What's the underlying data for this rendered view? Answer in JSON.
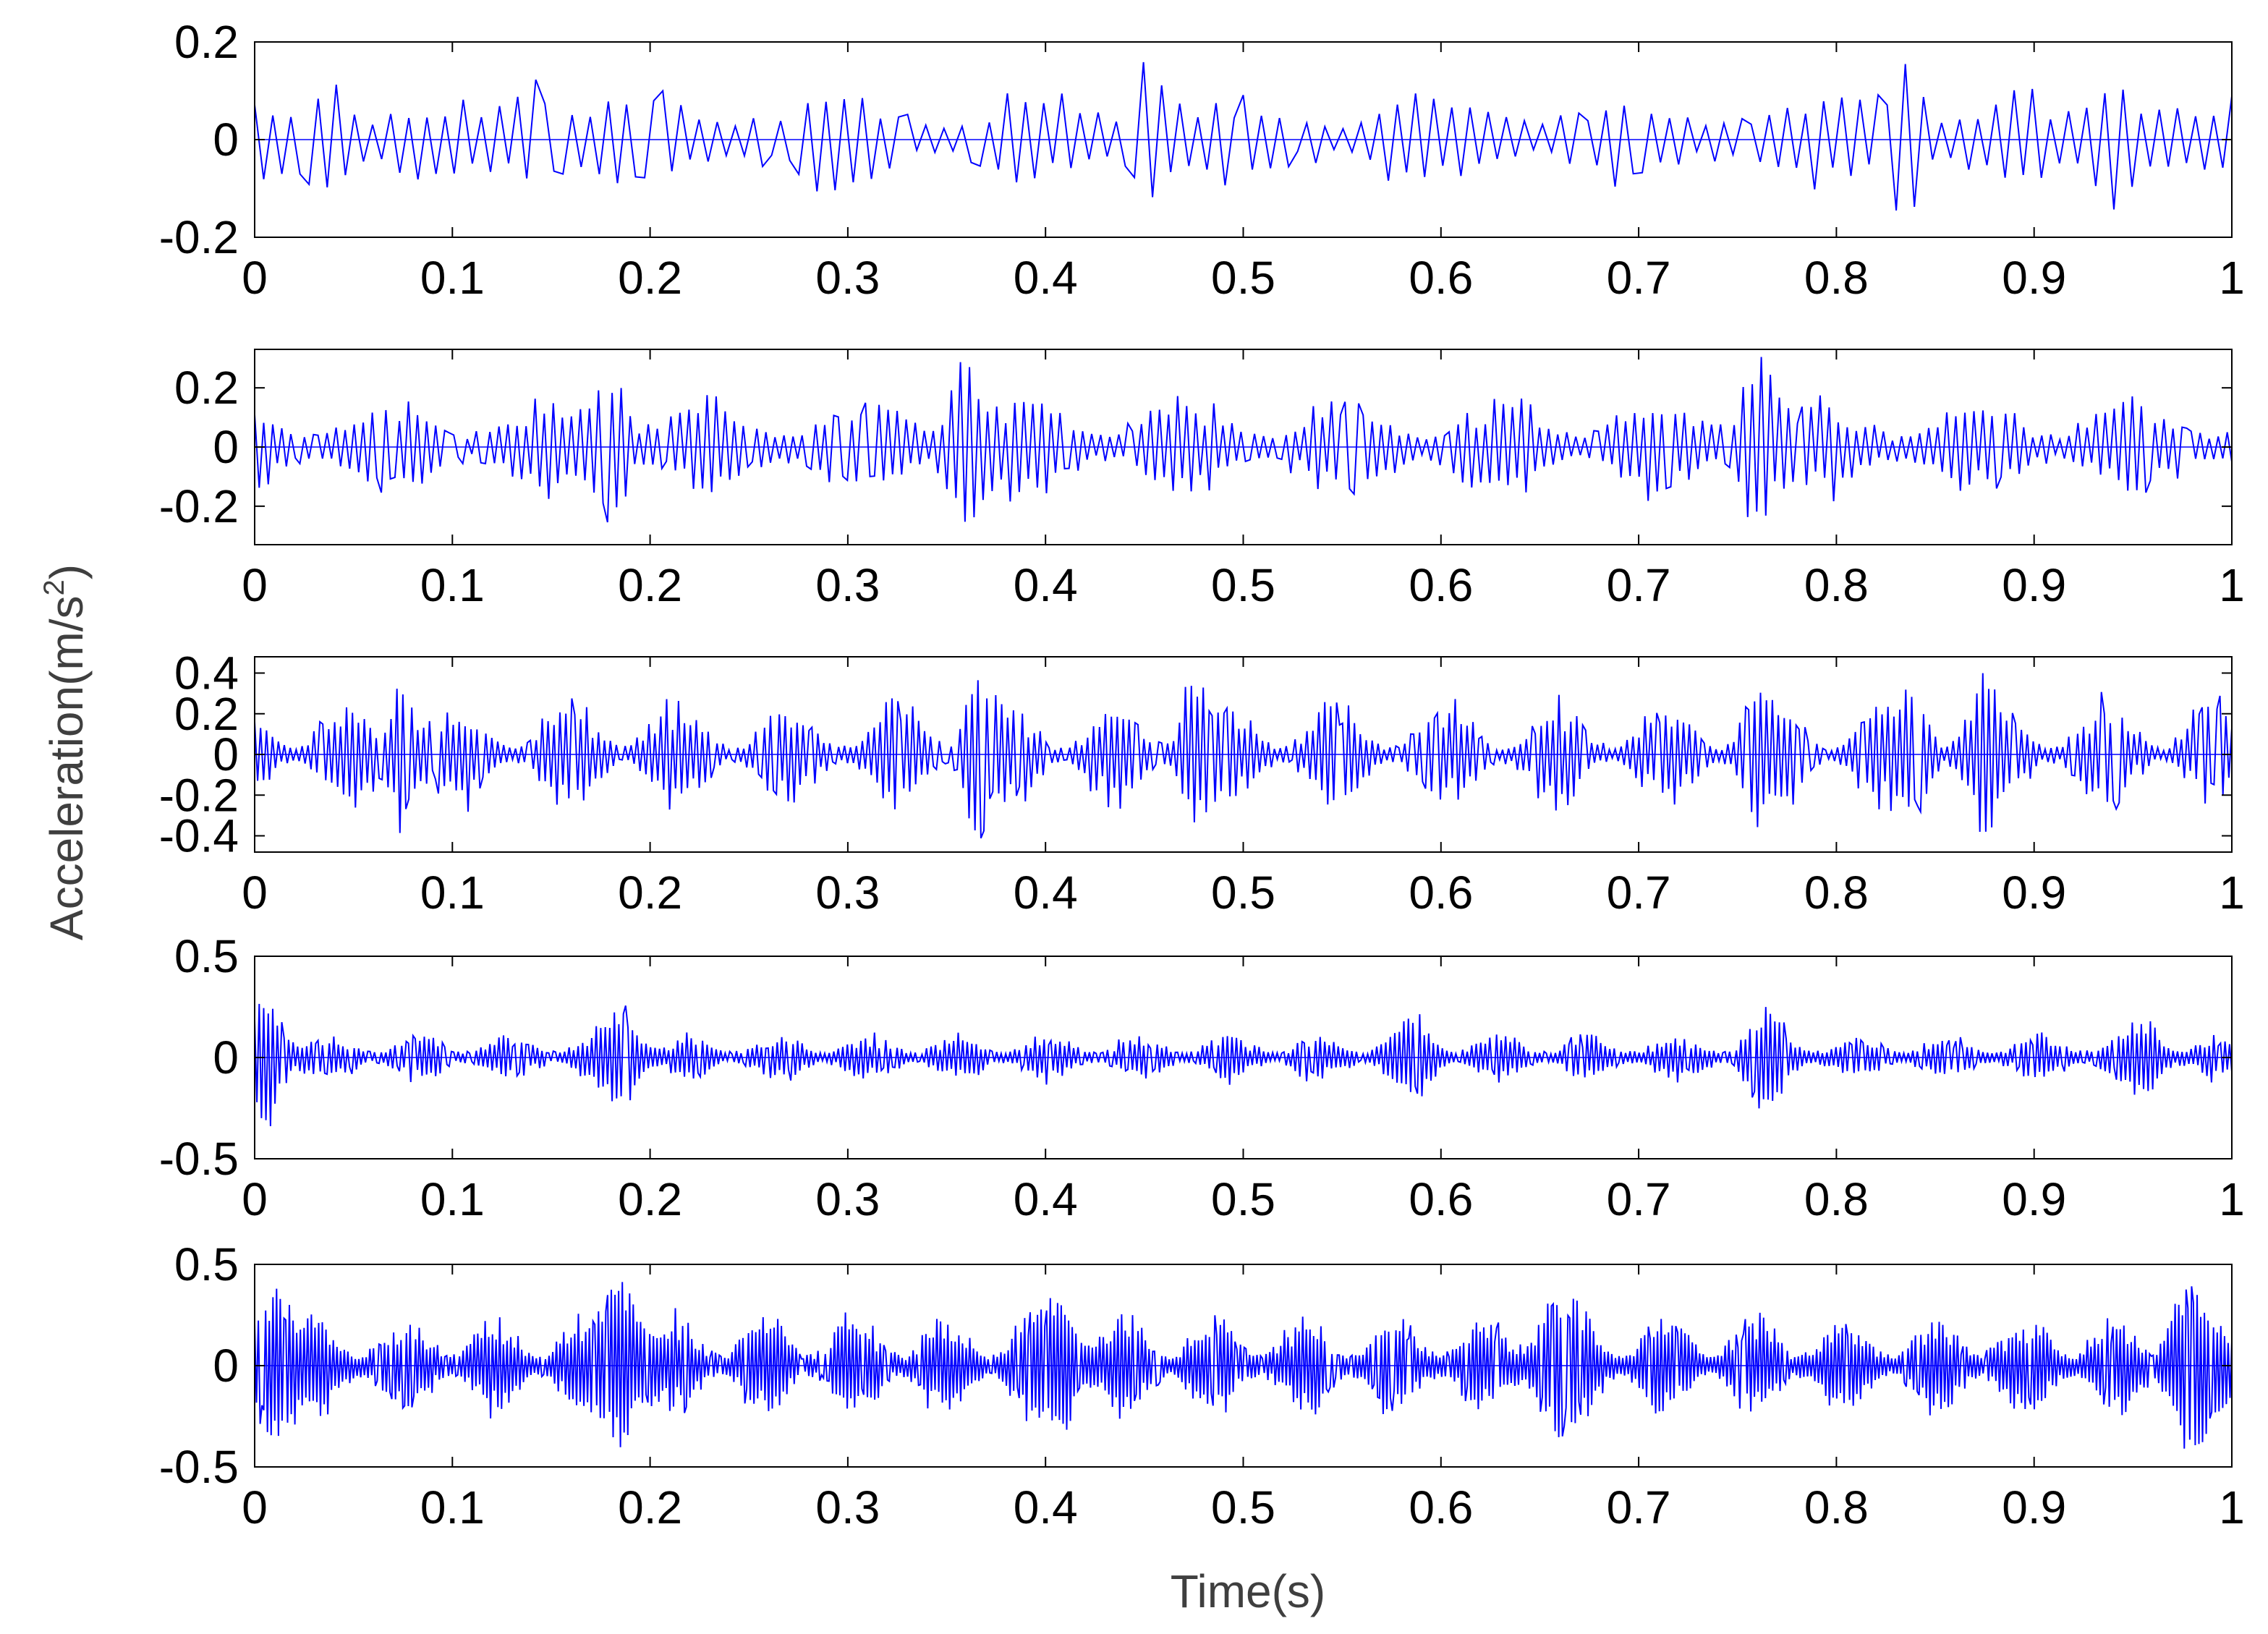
{
  "figure": {
    "xlabel": "Time(s)",
    "ylabel": "Acceleration(m/s",
    "ylabel_sup": "2",
    "ylabel_close": ")"
  },
  "chart_data": [
    {
      "type": "line",
      "x_range": [
        0,
        1
      ],
      "ylim": [
        -0.2,
        0.2
      ],
      "xticks": [
        0,
        0.1,
        0.2,
        0.3,
        0.4,
        0.5,
        0.6,
        0.7,
        0.8,
        0.9,
        1
      ],
      "xtick_labels": [
        "0",
        "0.1",
        "0.2",
        "0.3",
        "0.4",
        "0.5",
        "0.6",
        "0.7",
        "0.8",
        "0.9",
        "1"
      ],
      "yticks": [
        -0.2,
        0,
        0.2
      ],
      "ytick_labels": [
        "-0.2",
        "0",
        "0.2"
      ],
      "line_color": "#0000ff",
      "grid": false,
      "carrier_hz": 95,
      "envelope": {
        "base": 0.04,
        "amplitude": 0.07,
        "period_s": 0.1,
        "phase_s": 0.045
      },
      "peaks": [
        {
          "t": 0.038,
          "a": 0.13
        },
        {
          "t": 0.143,
          "a": 0.14
        },
        {
          "t": 0.45,
          "a": 0.16
        },
        {
          "t": 0.835,
          "a": 0.17
        },
        {
          "t": 0.941,
          "a": 0.16
        }
      ],
      "peak_width_s": 0.012
    },
    {
      "type": "line",
      "x_range": [
        0,
        1
      ],
      "ylim": [
        -0.33,
        0.33
      ],
      "xticks": [
        0,
        0.1,
        0.2,
        0.3,
        0.4,
        0.5,
        0.6,
        0.7,
        0.8,
        0.9,
        1
      ],
      "xtick_labels": [
        "0",
        "0.1",
        "0.2",
        "0.3",
        "0.4",
        "0.5",
        "0.6",
        "0.7",
        "0.8",
        "0.9",
        "1"
      ],
      "yticks": [
        -0.2,
        0,
        0.2
      ],
      "ytick_labels": [
        "-0.2",
        "0",
        "0.2"
      ],
      "line_color": "#0000ff",
      "grid": false,
      "carrier_hz": 190,
      "envelope": {
        "base": 0.05,
        "amplitude": 0.13,
        "period_s": 0.08,
        "phase_s": 0.03
      },
      "peaks": [
        {
          "t": 0.18,
          "a": 0.28
        },
        {
          "t": 0.36,
          "a": 0.33
        },
        {
          "t": 0.76,
          "a": 0.33
        }
      ],
      "peak_width_s": 0.01
    },
    {
      "type": "line",
      "x_range": [
        0,
        1
      ],
      "ylim": [
        -0.48,
        0.48
      ],
      "xticks": [
        0,
        0.1,
        0.2,
        0.3,
        0.4,
        0.5,
        0.6,
        0.7,
        0.8,
        0.9,
        1
      ],
      "xtick_labels": [
        "0",
        "0.1",
        "0.2",
        "0.3",
        "0.4",
        "0.5",
        "0.6",
        "0.7",
        "0.8",
        "0.9",
        "1"
      ],
      "yticks": [
        -0.4,
        -0.2,
        0,
        0.2,
        0.4
      ],
      "ytick_labels": [
        "-0.4",
        "-0.2",
        "0",
        "0.2",
        "0.4"
      ],
      "line_color": "#0000ff",
      "grid": false,
      "carrier_hz": 290,
      "envelope": {
        "base": 0.04,
        "amplitude": 0.24,
        "period_s": 0.0555,
        "phase_s": 0.02
      },
      "peaks": [
        {
          "t": 0.075,
          "a": 0.4
        },
        {
          "t": 0.365,
          "a": 0.47
        },
        {
          "t": 0.475,
          "a": 0.43
        },
        {
          "t": 0.76,
          "a": 0.44
        },
        {
          "t": 0.84,
          "a": 0.4
        },
        {
          "t": 0.875,
          "a": 0.42
        }
      ],
      "peak_width_s": 0.008
    },
    {
      "type": "line",
      "x_range": [
        0,
        1
      ],
      "ylim": [
        -0.5,
        0.5
      ],
      "xticks": [
        0,
        0.1,
        0.2,
        0.3,
        0.4,
        0.5,
        0.6,
        0.7,
        0.8,
        0.9,
        1
      ],
      "xtick_labels": [
        "0",
        "0.1",
        "0.2",
        "0.3",
        "0.4",
        "0.5",
        "0.6",
        "0.7",
        "0.8",
        "0.9",
        "1"
      ],
      "yticks": [
        -0.5,
        0,
        0.5
      ],
      "ytick_labels": [
        "-0.5",
        "0",
        "0.5"
      ],
      "line_color": "#0000ff",
      "grid": false,
      "carrier_hz": 380,
      "envelope": {
        "base": 0.03,
        "amplitude": 0.09,
        "period_s": 0.0455,
        "phase_s": 0.015
      },
      "peaks": [
        {
          "t": 0.005,
          "a": 0.38
        },
        {
          "t": 0.185,
          "a": 0.3
        },
        {
          "t": 0.585,
          "a": 0.24
        },
        {
          "t": 0.765,
          "a": 0.28
        },
        {
          "t": 0.955,
          "a": 0.2
        }
      ],
      "peak_width_s": 0.01
    },
    {
      "type": "line",
      "x_range": [
        0,
        1
      ],
      "ylim": [
        -0.5,
        0.5
      ],
      "xticks": [
        0,
        0.1,
        0.2,
        0.3,
        0.4,
        0.5,
        0.6,
        0.7,
        0.8,
        0.9,
        1
      ],
      "xtick_labels": [
        "0",
        "0.1",
        "0.2",
        "0.3",
        "0.4",
        "0.5",
        "0.6",
        "0.7",
        "0.8",
        "0.9",
        "1"
      ],
      "yticks": [
        -0.5,
        0,
        0.5
      ],
      "ytick_labels": [
        "-0.5",
        "0",
        "0.5"
      ],
      "line_color": "#0000ff",
      "grid": false,
      "carrier_hz": 470,
      "envelope": {
        "base": 0.06,
        "amplitude": 0.2,
        "period_s": 0.0455,
        "phase_s": 0.008
      },
      "peaks": [
        {
          "t": 0.01,
          "a": 0.4
        },
        {
          "t": 0.185,
          "a": 0.42
        },
        {
          "t": 0.405,
          "a": 0.38
        },
        {
          "t": 0.66,
          "a": 0.38
        },
        {
          "t": 0.98,
          "a": 0.45
        }
      ],
      "peak_width_s": 0.012
    }
  ]
}
